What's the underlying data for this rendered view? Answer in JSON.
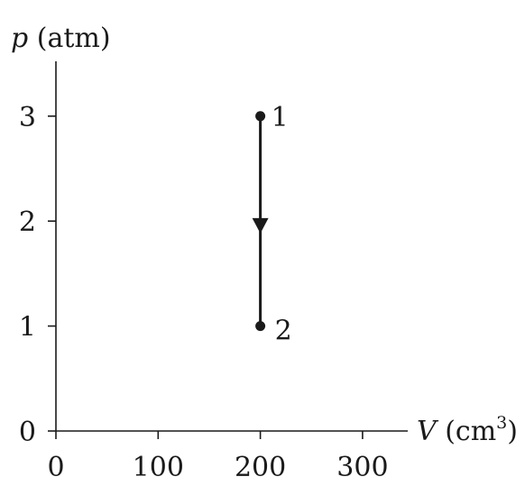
{
  "chart_data": {
    "type": "line",
    "ylabel_var": "p",
    "ylabel_unit": "(atm)",
    "xlabel_var": "V",
    "xlabel_unit": "(cm",
    "xlabel_unit_sup": "3",
    "xlabel_unit_close": ")",
    "xlim": [
      0,
      350
    ],
    "ylim": [
      0,
      3.5
    ],
    "xticks": [
      0,
      100,
      200,
      300
    ],
    "yticks": [
      0,
      1,
      2,
      3
    ],
    "xtick_labels": [
      "0",
      "100",
      "200",
      "300"
    ],
    "ytick_labels": [
      "0",
      "1",
      "2",
      "3"
    ],
    "grid": false,
    "series": [
      {
        "points": [
          {
            "x": 200,
            "y": 3,
            "label": "1"
          },
          {
            "x": 200,
            "y": 1,
            "label": "2"
          }
        ],
        "arrow_direction": "down"
      }
    ]
  }
}
